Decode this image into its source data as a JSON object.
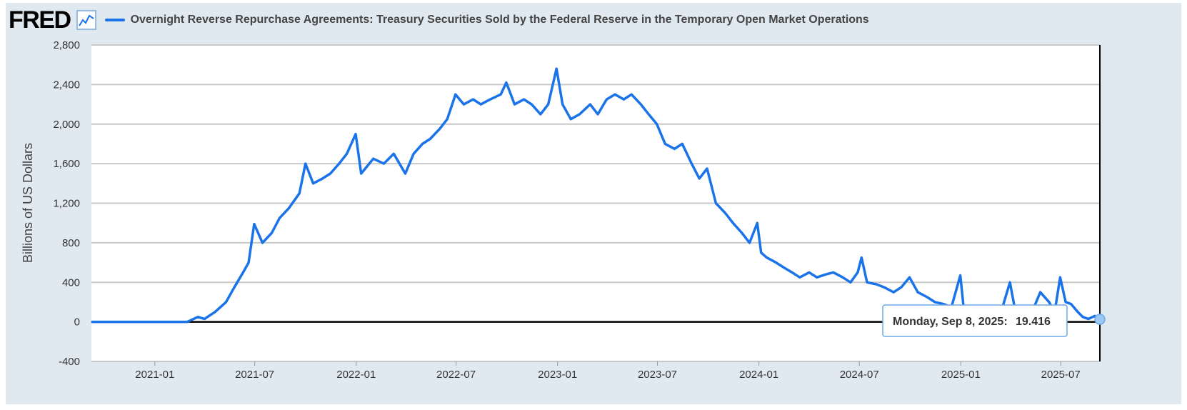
{
  "header": {
    "logo_text": "FRED",
    "series_title": "Overnight Reverse Repurchase Agreements: Treasury Securities Sold by the Federal Reserve in the Temporary Open Market Operations"
  },
  "tooltip": {
    "label": "Monday, Sep 8, 2025:",
    "value": "19.416"
  },
  "colors": {
    "line": "#1a73e8",
    "background": "#e1e9f0",
    "plot": "#ffffff",
    "grid": "#c8c8c8"
  },
  "chart_data": {
    "type": "line",
    "title": "",
    "xlabel": "",
    "ylabel": "Billions of US Dollars",
    "ylim": [
      -400,
      2800
    ],
    "yticks": [
      -400,
      0,
      400,
      800,
      1200,
      1600,
      2000,
      2400,
      2800
    ],
    "ytick_labels": [
      "-400",
      "0",
      "400",
      "800",
      "1,200",
      "1,600",
      "2,000",
      "2,400",
      "2,800"
    ],
    "xlim": [
      "2020-09-08",
      "2025-09-10"
    ],
    "xticks": [
      "2021-01-01",
      "2021-07-01",
      "2022-01-01",
      "2022-07-01",
      "2023-01-01",
      "2023-07-01",
      "2024-01-01",
      "2024-07-01",
      "2025-01-01",
      "2025-07-01"
    ],
    "xtick_labels": [
      "2021-01",
      "2021-07",
      "2022-01",
      "2022-07",
      "2023-01",
      "2023-07",
      "2024-01",
      "2024-07",
      "2025-01",
      "2025-07"
    ],
    "grid": "horizontal",
    "series": [
      {
        "name": "Overnight Reverse Repurchase Agreements: Treasury Securities Sold by the Federal Reserve in the Temporary Open Market Operations",
        "x": [
          "2020-09-08",
          "2020-11-01",
          "2021-01-01",
          "2021-03-01",
          "2021-03-20",
          "2021-04-01",
          "2021-04-20",
          "2021-05-10",
          "2021-05-25",
          "2021-06-10",
          "2021-06-20",
          "2021-06-30",
          "2021-07-15",
          "2021-08-01",
          "2021-08-15",
          "2021-09-01",
          "2021-09-20",
          "2021-10-01",
          "2021-10-15",
          "2021-11-01",
          "2021-11-15",
          "2021-12-01",
          "2021-12-15",
          "2021-12-31",
          "2022-01-10",
          "2022-02-01",
          "2022-02-20",
          "2022-03-10",
          "2022-03-31",
          "2022-04-15",
          "2022-05-01",
          "2022-05-15",
          "2022-06-01",
          "2022-06-15",
          "2022-06-30",
          "2022-07-15",
          "2022-08-01",
          "2022-08-15",
          "2022-09-01",
          "2022-09-20",
          "2022-09-30",
          "2022-10-15",
          "2022-11-01",
          "2022-11-15",
          "2022-12-01",
          "2022-12-15",
          "2022-12-30",
          "2023-01-10",
          "2023-01-25",
          "2023-02-10",
          "2023-03-01",
          "2023-03-15",
          "2023-03-31",
          "2023-04-15",
          "2023-05-01",
          "2023-05-15",
          "2023-06-01",
          "2023-06-15",
          "2023-06-30",
          "2023-07-15",
          "2023-08-01",
          "2023-08-15",
          "2023-09-01",
          "2023-09-15",
          "2023-09-29",
          "2023-10-15",
          "2023-11-01",
          "2023-11-15",
          "2023-12-01",
          "2023-12-15",
          "2023-12-29",
          "2024-01-05",
          "2024-01-15",
          "2024-02-01",
          "2024-02-15",
          "2024-03-01",
          "2024-03-15",
          "2024-04-01",
          "2024-04-15",
          "2024-05-01",
          "2024-05-15",
          "2024-06-01",
          "2024-06-15",
          "2024-06-28",
          "2024-07-05",
          "2024-07-15",
          "2024-08-01",
          "2024-08-15",
          "2024-09-01",
          "2024-09-15",
          "2024-09-30",
          "2024-10-15",
          "2024-11-01",
          "2024-11-15",
          "2024-12-01",
          "2024-12-15",
          "2024-12-31",
          "2025-01-06",
          "2025-01-20",
          "2025-02-01",
          "2025-02-15",
          "2025-03-01",
          "2025-03-15",
          "2025-03-31",
          "2025-04-10",
          "2025-04-25",
          "2025-05-10",
          "2025-05-25",
          "2025-06-10",
          "2025-06-20",
          "2025-06-30",
          "2025-07-10",
          "2025-07-20",
          "2025-08-01",
          "2025-08-10",
          "2025-08-20",
          "2025-09-01",
          "2025-09-08"
        ],
        "values": [
          0,
          0,
          0,
          0,
          50,
          30,
          100,
          200,
          350,
          500,
          600,
          990,
          800,
          900,
          1050,
          1150,
          1300,
          1600,
          1400,
          1450,
          1500,
          1600,
          1700,
          1900,
          1500,
          1650,
          1600,
          1700,
          1500,
          1700,
          1800,
          1850,
          1950,
          2050,
          2300,
          2200,
          2250,
          2200,
          2250,
          2300,
          2420,
          2200,
          2250,
          2200,
          2100,
          2200,
          2560,
          2200,
          2050,
          2100,
          2200,
          2100,
          2250,
          2300,
          2250,
          2300,
          2200,
          2100,
          2000,
          1800,
          1750,
          1800,
          1600,
          1450,
          1550,
          1200,
          1100,
          1000,
          900,
          800,
          1000,
          700,
          650,
          600,
          550,
          500,
          450,
          500,
          450,
          480,
          500,
          450,
          400,
          500,
          650,
          400,
          380,
          350,
          300,
          350,
          450,
          300,
          250,
          200,
          180,
          150,
          470,
          150,
          100,
          150,
          100,
          150,
          100,
          400,
          100,
          150,
          100,
          300,
          200,
          100,
          450,
          200,
          180,
          100,
          50,
          30,
          60,
          19.416
        ]
      }
    ]
  }
}
